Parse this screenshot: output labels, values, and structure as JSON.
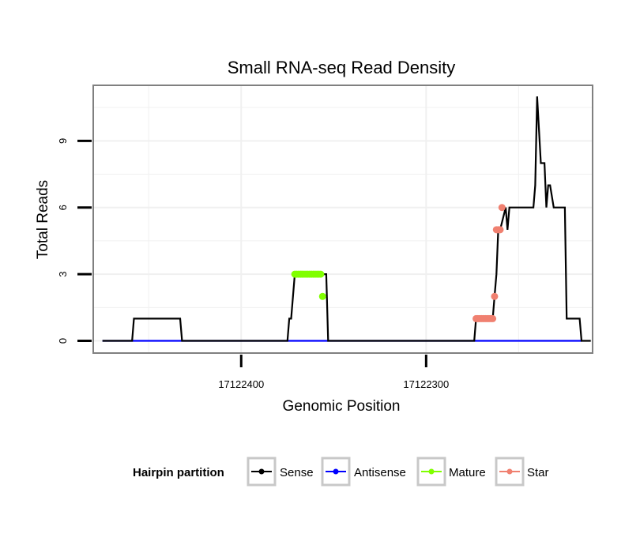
{
  "chart_data": {
    "type": "line",
    "title": "Small RNA-seq Read Density",
    "xlabel": "Genomic Position",
    "ylabel": "Total Reads",
    "x_reversed": true,
    "xlim": [
      17122480,
      17122210
    ],
    "ylim": [
      -0.55,
      11.5
    ],
    "x_ticks": [
      17122400,
      17122300
    ],
    "x_tick_labels": [
      "17122400",
      "17122300"
    ],
    "y_ticks": [
      0,
      3,
      6,
      9
    ],
    "y_tick_labels": [
      "0",
      "3",
      "6",
      "9"
    ],
    "grid": true,
    "legend": {
      "title": "Hairpin partition",
      "position": "bottom",
      "entries": [
        {
          "name": "Sense",
          "color": "#000000"
        },
        {
          "name": "Antisense",
          "color": "#0000ff"
        },
        {
          "name": "Mature",
          "color": "#80ff00"
        },
        {
          "name": "Star",
          "color": "#f08070"
        }
      ]
    },
    "series": [
      {
        "name": "Sense",
        "color": "#000000",
        "type": "line",
        "x": [
          17122475,
          17122459,
          17122458,
          17122433,
          17122432,
          17122375,
          17122374,
          17122373,
          17122371,
          17122354,
          17122353,
          17122274,
          17122273,
          17122264,
          17122263,
          17122262,
          17122261,
          17122260,
          17122257,
          17122256,
          17122255,
          17122242,
          17122241,
          17122240,
          17122238,
          17122237,
          17122236,
          17122235,
          17122234,
          17122233,
          17122231,
          17122225,
          17122224,
          17122217,
          17122216,
          17122211
        ],
        "y": [
          0,
          0,
          1,
          1,
          0,
          0,
          1,
          1,
          3,
          3,
          0,
          0,
          1,
          1,
          2,
          3,
          5,
          5,
          6,
          5,
          6,
          6,
          7,
          11,
          8,
          8,
          8,
          6,
          7,
          7,
          6,
          6,
          1,
          1,
          0,
          0
        ]
      },
      {
        "name": "Antisense",
        "color": "#0000ff",
        "type": "line",
        "x": [
          17122475,
          17122216
        ],
        "y": [
          0,
          0
        ]
      },
      {
        "name": "Mature",
        "color": "#80ff00",
        "type": "points",
        "x": [
          17122371,
          17122370,
          17122369,
          17122368,
          17122367,
          17122366,
          17122365,
          17122364,
          17122363,
          17122362,
          17122361,
          17122360,
          17122359,
          17122358,
          17122357,
          17122356
        ],
        "y": [
          3,
          3,
          3,
          3,
          3,
          3,
          3,
          3,
          3,
          3,
          3,
          3,
          3,
          3,
          3,
          2
        ]
      },
      {
        "name": "Star",
        "color": "#f08070",
        "type": "points",
        "x": [
          17122273,
          17122272,
          17122271,
          17122270,
          17122269,
          17122268,
          17122267,
          17122266,
          17122265,
          17122264,
          17122263,
          17122262,
          17122261,
          17122260,
          17122259
        ],
        "y": [
          1,
          1,
          1,
          1,
          1,
          1,
          1,
          1,
          1,
          1,
          2,
          5,
          5,
          5,
          6
        ]
      }
    ]
  }
}
